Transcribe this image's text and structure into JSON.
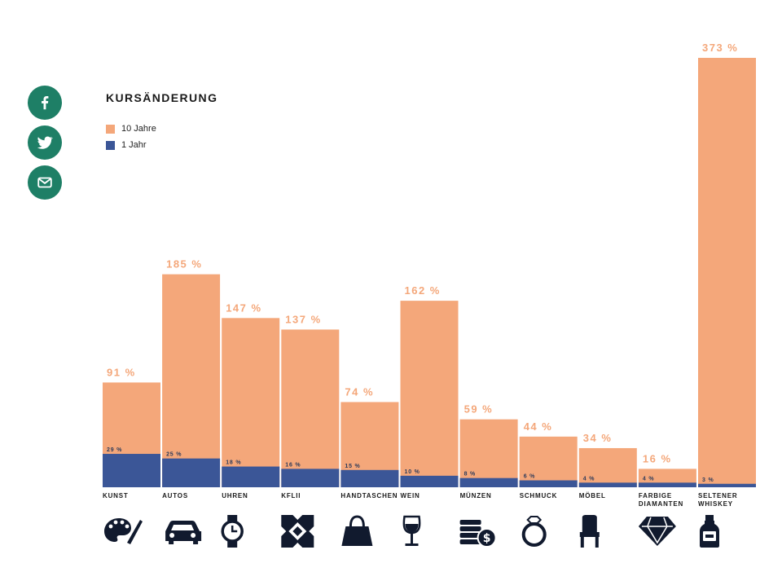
{
  "share": {
    "facebook_label": "f",
    "twitter_label": "Twitter",
    "email_label": "E-Mail"
  },
  "colors": {
    "ten_year": "#f4a77a",
    "one_year": "#3b5697",
    "label_ten": "#f4a77a",
    "label_one": "#ffffff",
    "share": "#1e7f66",
    "icon": "#111a2e"
  },
  "chart_data": {
    "type": "bar",
    "title": "KURSÄNDERUNG",
    "legend_position": "top-left",
    "series": [
      {
        "name": "10 Jahre",
        "values": [
          91,
          185,
          147,
          137,
          74,
          162,
          59,
          44,
          34,
          16,
          373
        ],
        "labels": [
          "91 %",
          "185 %",
          "147 %",
          "137 %",
          "74 %",
          "162 %",
          "59 %",
          "44 %",
          "34 %",
          "16 %",
          "373 %"
        ]
      },
      {
        "name": "1 Jahr",
        "values": [
          29,
          25,
          18,
          16,
          15,
          10,
          8,
          6,
          4,
          4,
          3
        ],
        "labels": [
          "29 %",
          "25 %",
          "18 %",
          "16 %",
          "15 %",
          "10 %",
          "8 %",
          "6 %",
          "4 %",
          "4 %",
          "3 %"
        ]
      }
    ],
    "categories": [
      {
        "label": "KUNST",
        "icon": "palette-icon"
      },
      {
        "label": "AUTOS",
        "icon": "car-icon"
      },
      {
        "label": "UHREN",
        "icon": "watch-icon"
      },
      {
        "label": "KFLII",
        "icon": "kflii-icon"
      },
      {
        "label": "HANDTASCHEN",
        "icon": "handbag-icon"
      },
      {
        "label": "WEIN",
        "icon": "wine-glass-icon"
      },
      {
        "label": "MÜNZEN",
        "icon": "coins-icon"
      },
      {
        "label": "SCHMUCK",
        "icon": "ring-icon"
      },
      {
        "label": "MÖBEL",
        "icon": "chair-icon"
      },
      {
        "label": "FARBIGE DIAMANTEN",
        "icon": "diamond-icon"
      },
      {
        "label": "SELTENER WHISKEY",
        "icon": "whiskey-bottle-icon"
      }
    ],
    "ylim": [
      0,
      373
    ],
    "xlabel": "",
    "ylabel": "",
    "grid": false
  }
}
